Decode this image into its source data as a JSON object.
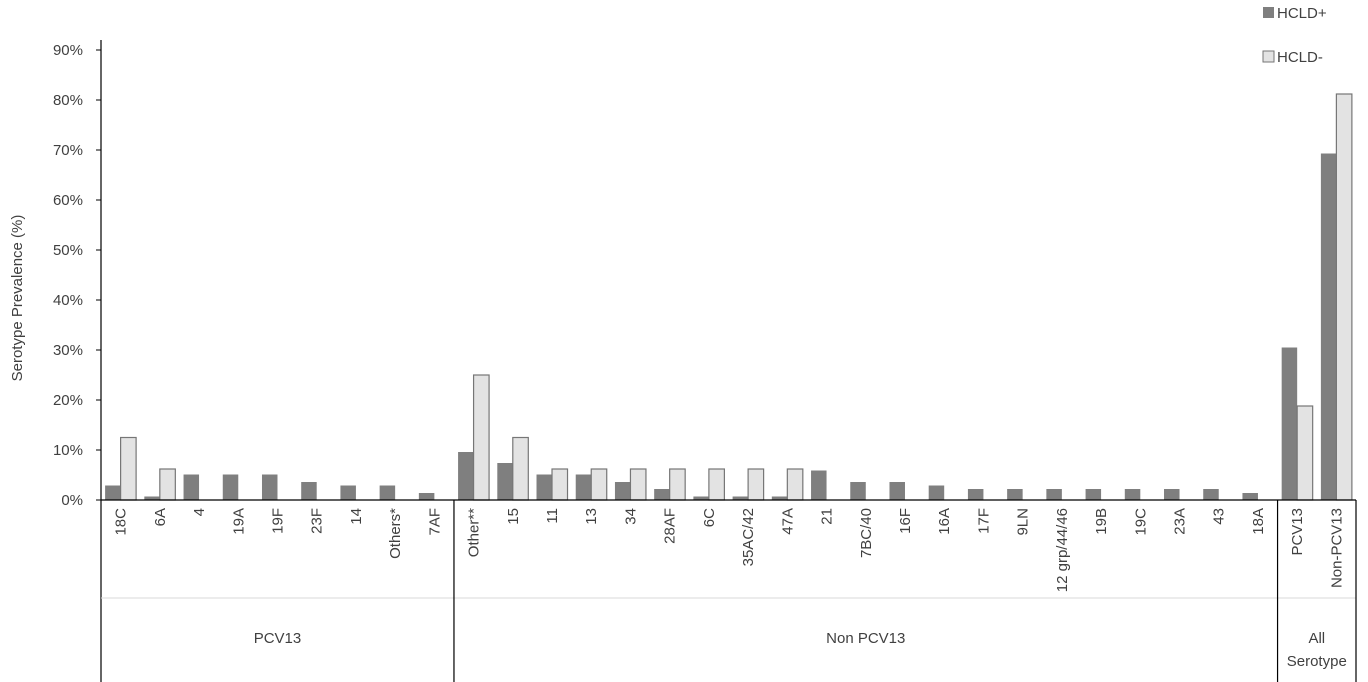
{
  "chart_data": {
    "type": "bar",
    "ylabel": "Serotype Prevalence (%)",
    "ylim": [
      0,
      90
    ],
    "y_ticks": [
      "0%",
      "10%",
      "20%",
      "30%",
      "40%",
      "50%",
      "60%",
      "70%",
      "80%",
      "90%"
    ],
    "grid": false,
    "legend_position": "top-right",
    "groups": [
      {
        "label": "PCV13",
        "categories": [
          "18C",
          "6A",
          "4",
          "19A",
          "19F",
          "23F",
          "14",
          "Others*",
          "7AF"
        ]
      },
      {
        "label": "Non PCV13",
        "categories": [
          "Other**",
          "15",
          "11",
          "13",
          "34",
          "28AF",
          "6C",
          "35AC/42",
          "47A",
          "21",
          "7BC/40",
          "16F",
          "16A",
          "17F",
          "9LN",
          "12 grp/44/46",
          "19B",
          "19C",
          "23A",
          "43",
          "18A"
        ]
      },
      {
        "label": "All Serotype",
        "label_lines": [
          "All",
          "Serotype"
        ],
        "categories": [
          "PCV13",
          "Non-PCV13"
        ]
      }
    ],
    "categories": [
      "18C",
      "6A",
      "4",
      "19A",
      "19F",
      "23F",
      "14",
      "Others*",
      "7AF",
      "Other**",
      "15",
      "11",
      "13",
      "34",
      "28AF",
      "6C",
      "35AC/42",
      "47A",
      "21",
      "7BC/40",
      "16F",
      "16A",
      "17F",
      "9LN",
      "12 grp/44/46",
      "19B",
      "19C",
      "23A",
      "43",
      "18A",
      "PCV13",
      "Non-PCV13"
    ],
    "series": [
      {
        "name": "HCLD+",
        "color": "#7f7f7f",
        "values": [
          2.9,
          0.7,
          5.1,
          5.1,
          5.1,
          3.6,
          2.9,
          2.9,
          1.4,
          9.6,
          7.4,
          5.1,
          5.1,
          3.6,
          2.2,
          0.7,
          0.7,
          0.7,
          5.9,
          3.6,
          3.6,
          2.9,
          2.2,
          2.2,
          2.2,
          2.2,
          2.2,
          2.2,
          2.2,
          1.4,
          30.5,
          69.3
        ]
      },
      {
        "name": "HCLD-",
        "color": "#e3e3e3",
        "values": [
          12.5,
          6.2,
          0,
          0,
          0,
          0,
          0,
          0,
          0,
          25.0,
          12.5,
          6.2,
          6.2,
          6.2,
          6.2,
          6.2,
          6.2,
          6.2,
          0,
          0,
          0,
          0,
          0,
          0,
          0,
          0,
          0,
          0,
          0,
          0,
          18.8,
          81.2
        ]
      }
    ]
  }
}
